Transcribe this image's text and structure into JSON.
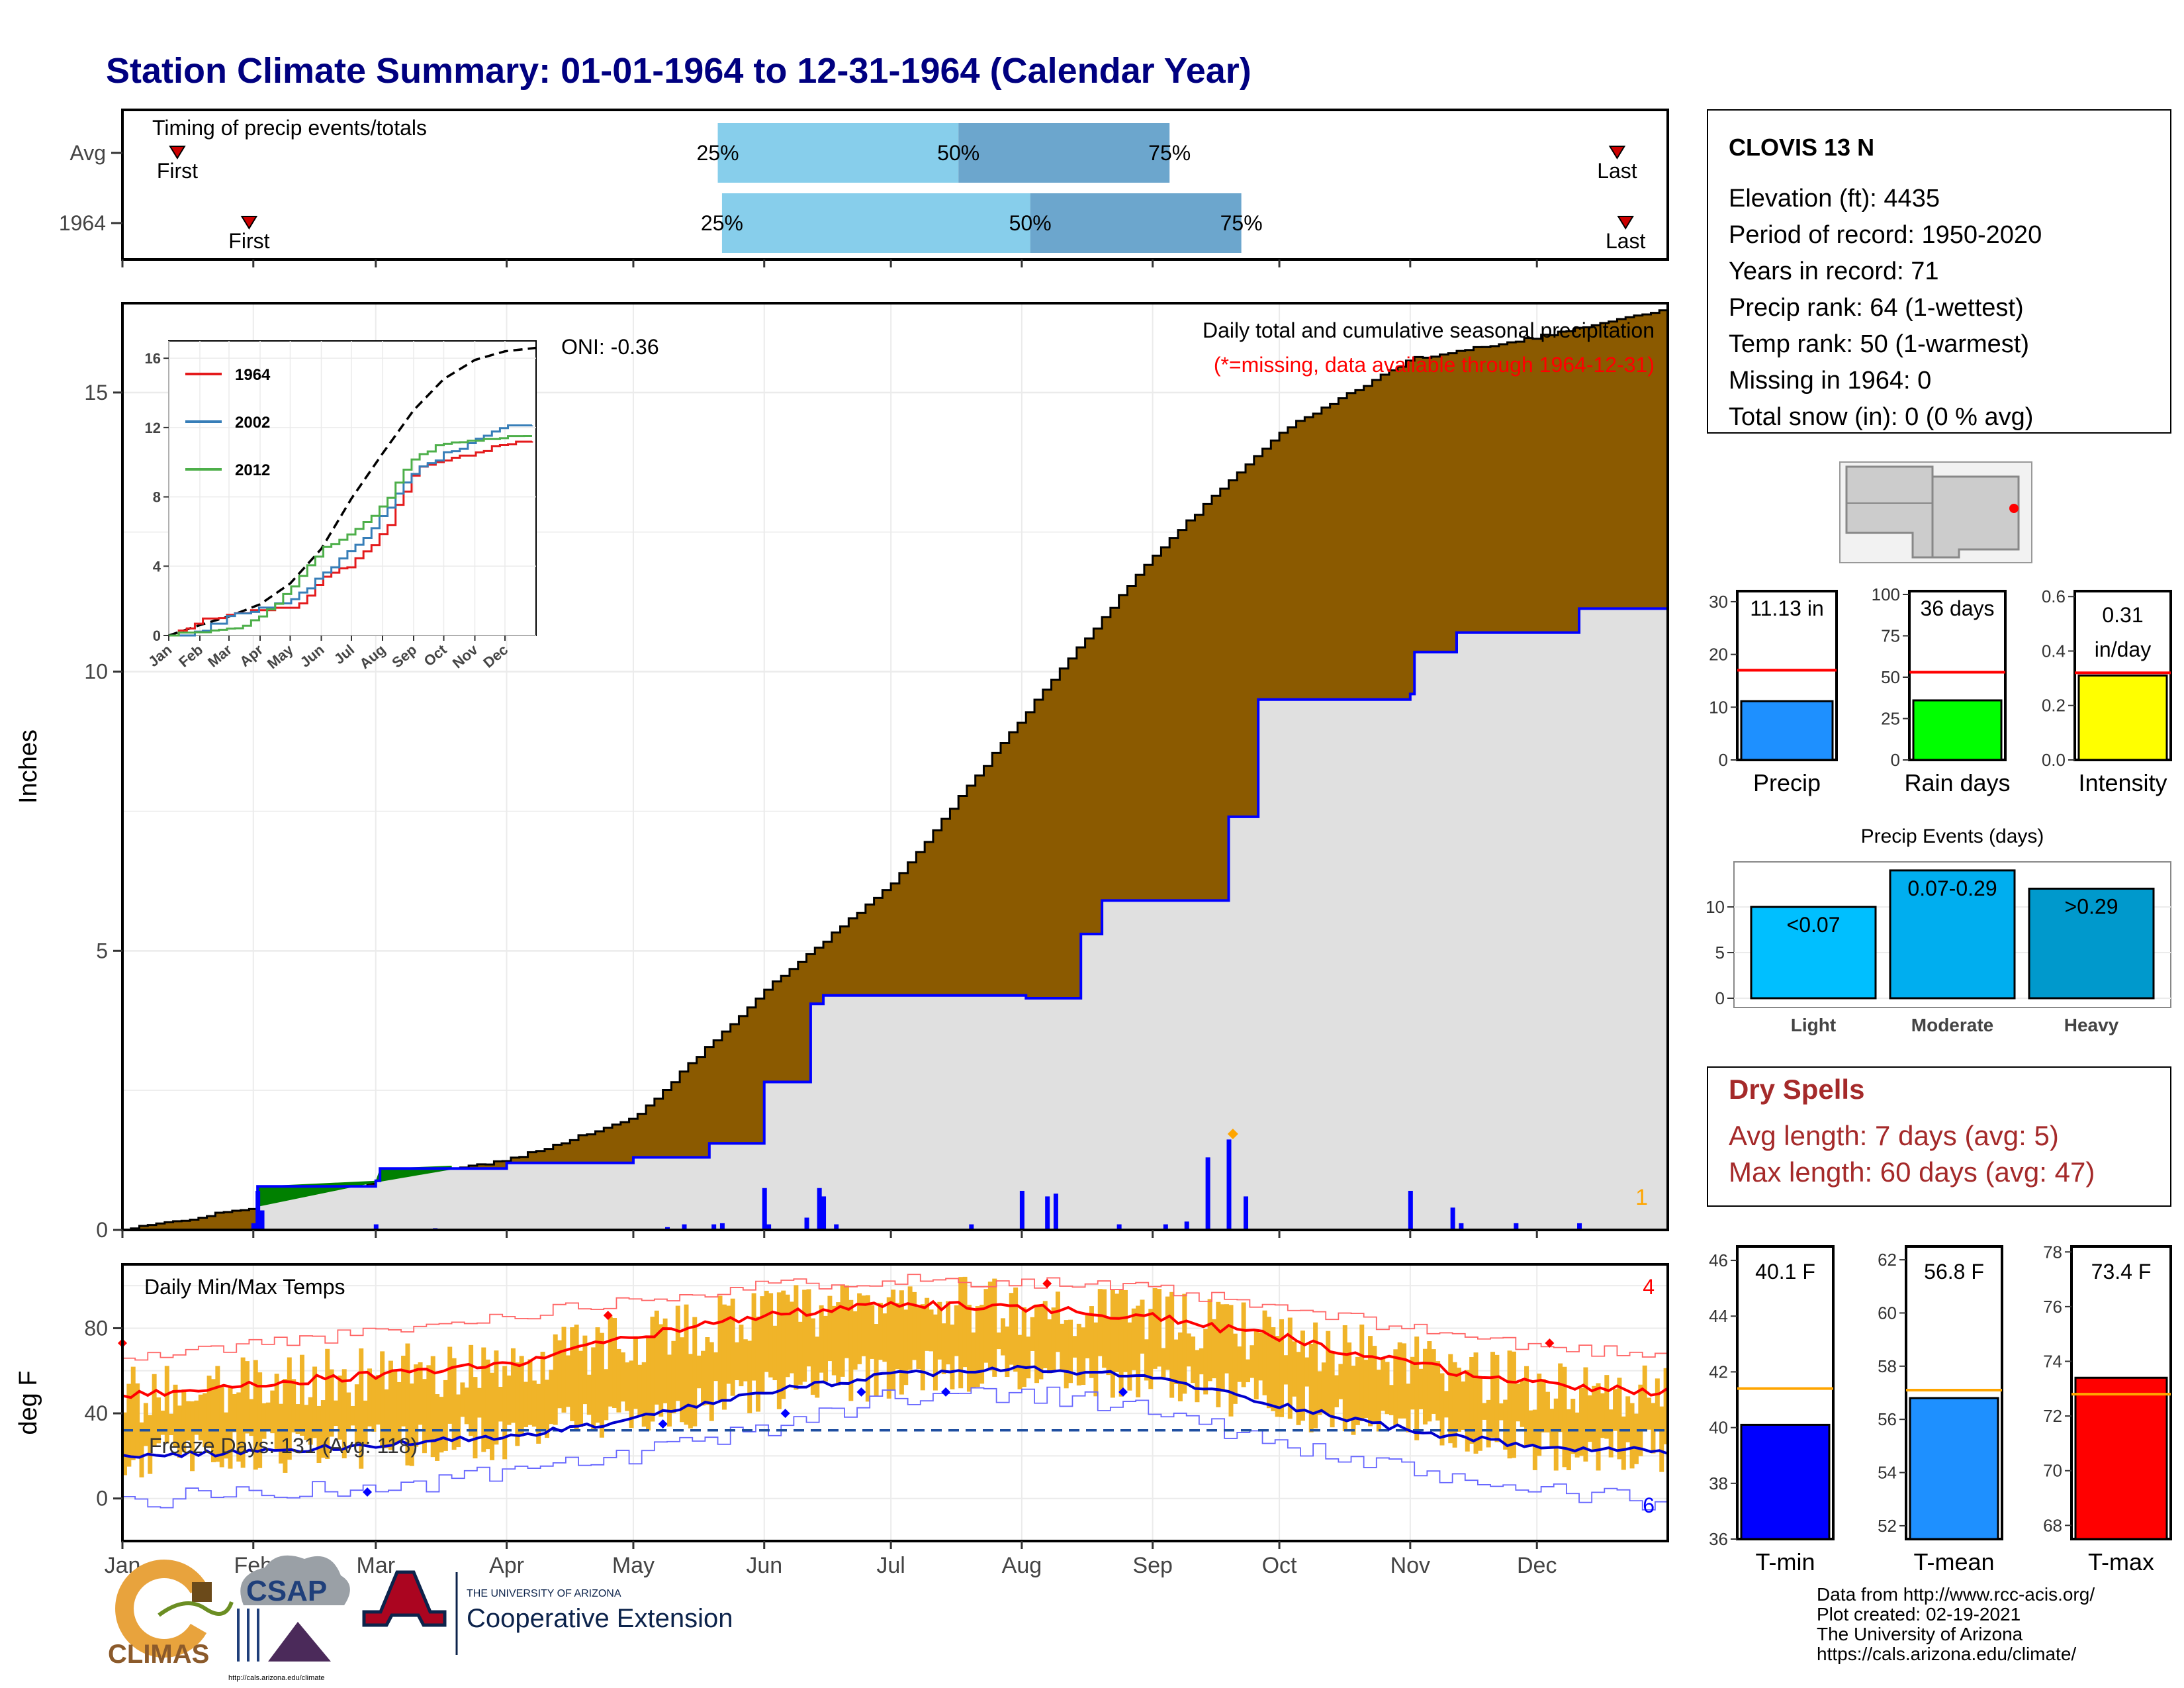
{
  "title": "Station Climate Summary: 01-01-1964 to 12-31-1964 (Calendar Year)",
  "timing": {
    "label": "Timing of precip events/totals",
    "rows": [
      {
        "name": "Avg",
        "first_doy": 13,
        "last_doy": 354,
        "p25_doy": 141,
        "p50_doy": 198,
        "p75_doy": 248,
        "first_label": "First",
        "last_label": "Last",
        "p25_label": "25%",
        "p50_label": "50%",
        "p75_label": "75%"
      },
      {
        "name": "1964",
        "first_doy": 30,
        "last_doy": 356,
        "p25_doy": 142,
        "p50_doy": 215,
        "p75_doy": 265,
        "first_label": "First",
        "last_label": "Last",
        "p25_label": "25%",
        "p50_label": "50%",
        "p75_label": "75%"
      }
    ]
  },
  "precip_panel": {
    "ylabel": "Inches",
    "yticks": [
      0,
      5,
      10,
      15
    ],
    "title_line1": "Daily total and cumulative seasonal precipitation",
    "title_line2": "(*=missing, data available through 1964-12-31)",
    "oni": "ONI: -0.36",
    "corner_count": "1",
    "colors": {
      "avg_fill": "#8B5A00",
      "obs_fill": "#e0e0e0",
      "obs_line": "#0000ff",
      "excess_fill": "#008000"
    }
  },
  "inset": {
    "yticks": [
      0,
      4,
      8,
      12,
      16
    ],
    "months": [
      "Jan",
      "Feb",
      "Mar",
      "Apr",
      "May",
      "Jun",
      "Jul",
      "Aug",
      "Sep",
      "Oct",
      "Nov",
      "Dec"
    ],
    "legend": [
      {
        "name": "1964",
        "color": "#e41a1c"
      },
      {
        "name": "2002",
        "color": "#377eb8"
      },
      {
        "name": "2012",
        "color": "#4daf4a"
      }
    ]
  },
  "temp_panel": {
    "ylabel": "deg F",
    "yticks": [
      0,
      40,
      80
    ],
    "label": "Daily Min/Max Temps",
    "freeze_label": "Freeze Days: 131 (Avg: 118)",
    "count_max": "4",
    "count_min": "6",
    "months": [
      "Jan",
      "Feb",
      "Mar",
      "Apr",
      "May",
      "Jun",
      "Jul",
      "Aug",
      "Sep",
      "Oct",
      "Nov",
      "Dec"
    ]
  },
  "station": {
    "name": "CLOVIS 13 N",
    "lines": [
      "Elevation (ft): 4435",
      "Period of record: 1950-2020",
      "Years in record: 71",
      "Precip rank: 64 (1-wettest)",
      "Temp rank: 50 (1-warmest)",
      "Missing in 1964: 0",
      "Total snow (in): 0 (0 % avg)"
    ]
  },
  "mini_bars": [
    {
      "label": "Precip",
      "value_text": "11.13 in",
      "value": 11.13,
      "avg": 17,
      "ymax": 32,
      "yticks": [
        0,
        10,
        20,
        30
      ],
      "color": "#1E90FF"
    },
    {
      "label": "Rain days",
      "value_text": "36 days",
      "value": 36,
      "avg": 53,
      "ymax": 102,
      "yticks": [
        0,
        25,
        50,
        75,
        100
      ],
      "color": "#00FF00"
    },
    {
      "label": "Intensity",
      "value_text_1": "0.31",
      "value_text_2": "in/day",
      "value": 0.31,
      "avg": 0.32,
      "ymax": 0.62,
      "yticks": [
        0.0,
        0.2,
        0.4,
        0.6
      ],
      "color": "#FFFF00"
    }
  ],
  "events": {
    "title": "Precip Events (days)",
    "yticks": [
      0,
      5,
      10
    ],
    "ymax": 14.5,
    "bars": [
      {
        "category": "Light",
        "label": "<0.07",
        "value": 10,
        "color": "#00BFFF"
      },
      {
        "category": "Moderate",
        "label": "0.07-0.29",
        "value": 14,
        "color": "#00AEEF"
      },
      {
        "category": "Heavy",
        "label": ">0.29",
        "value": 12,
        "color": "#0099CC"
      }
    ]
  },
  "dry_spells": {
    "title": "Dry Spells",
    "line1": "Avg length: 7 days (avg: 5)",
    "line2": "Max length: 60 days (avg: 47)",
    "color": "#A52A2A"
  },
  "temp_bars": [
    {
      "label": "T-min",
      "value_text": "40.1 F",
      "value": 40.1,
      "avg": 41.4,
      "ymin": 36,
      "ymax": 46.5,
      "yticks": [
        36,
        38,
        40,
        42,
        44,
        46
      ],
      "color": "#0000FF"
    },
    {
      "label": "T-mean",
      "value_text": "56.8 F",
      "value": 56.8,
      "avg": 57.1,
      "ymin": 51.5,
      "ymax": 62.5,
      "yticks": [
        52,
        54,
        56,
        58,
        60,
        62
      ],
      "color": "#1E90FF"
    },
    {
      "label": "T-max",
      "value_text": "73.4 F",
      "value": 73.4,
      "avg": 72.8,
      "ymin": 67.5,
      "ymax": 78.2,
      "yticks": [
        68,
        70,
        72,
        74,
        76,
        78
      ],
      "color": "#FF0000"
    }
  ],
  "footer": {
    "lines": [
      "Data from http://www.rcc-acis.org/",
      "Plot created: 02-19-2021",
      "The University of Arizona",
      "https://cals.arizona.edu/climate/"
    ],
    "climas_text": "CLIMAS",
    "csap_text": "CSAP",
    "csap_url": "http://cals.arizona.edu/climate",
    "ua_small": "THE UNIVERSITY OF ARIZONA",
    "ua_big": "Cooperative Extension"
  },
  "chart_data": [
    {
      "type": "area",
      "title": "Daily total and cumulative seasonal precipitation",
      "ylabel": "Inches",
      "ylim": [
        0,
        16.6
      ],
      "x": [
        "Jan",
        "Feb",
        "Mar",
        "Apr",
        "May",
        "Jun",
        "Jul",
        "Aug",
        "Sep",
        "Oct",
        "Nov",
        "Dec",
        "Dec 31"
      ],
      "series": [
        {
          "values": [
            0.0,
            0.4,
            0.85,
            1.25,
            2.0,
            4.3,
            6.2,
            9.2,
            12.1,
            14.3,
            15.6,
            16.0,
            16.5
          ]
        },
        {
          "values": [
            0.0,
            0.05,
            1.0,
            1.2,
            1.35,
            1.55,
            4.2,
            4.2,
            5.9,
            7.4,
            9.6,
            10.3,
            11.13
          ]
        }
      ],
      "daily_bars": [
        {
          "date": "Feb 2",
          "value": 0.7
        },
        {
          "date": "Mar 1",
          "value": 0.1
        },
        {
          "date": "Jun 1",
          "value": 0.75
        },
        {
          "date": "Jun 12",
          "value": 0.75
        },
        {
          "date": "Aug 6",
          "value": 0.7
        },
        {
          "date": "Aug 13",
          "value": 0.6
        },
        {
          "date": "Sep 12",
          "value": 1.3
        },
        {
          "date": "Sep 19",
          "value": 1.65
        },
        {
          "date": "Nov 1",
          "value": 0.7
        },
        {
          "date": "Dec 1",
          "value": 0.15
        }
      ]
    },
    {
      "type": "line",
      "title": "",
      "ylim": [
        0,
        17
      ],
      "x": [
        "Jan",
        "Feb",
        "Mar",
        "Apr",
        "May",
        "Jun",
        "Jul",
        "Aug",
        "Sep",
        "Oct",
        "Nov",
        "Dec"
      ],
      "series": [
        {
          "values": [
            0.0,
            0.6,
            1.1,
            1.8,
            3.0,
            5.0,
            7.9,
            10.5,
            13.0,
            14.8,
            15.9,
            16.4
          ]
        },
        {
          "name": "1964",
          "values": [
            0.0,
            0.8,
            1.1,
            1.4,
            1.5,
            3.2,
            4.2,
            5.9,
            9.6,
            10.0,
            10.6,
            11.1
          ]
        },
        {
          "name": "2002",
          "values": [
            0.0,
            0.2,
            1.1,
            1.5,
            2.0,
            3.5,
            5.0,
            7.0,
            9.5,
            10.5,
            11.2,
            12.0
          ]
        },
        {
          "name": "2012",
          "values": [
            0.0,
            0.1,
            0.3,
            1.0,
            2.8,
            5.0,
            6.0,
            7.5,
            10.5,
            11.0,
            11.2,
            11.4
          ]
        }
      ]
    },
    {
      "type": "line",
      "title": "Daily Min/Max Temps",
      "ylabel": "deg F",
      "ylim": [
        -20,
        110
      ],
      "x": [
        "Jan",
        "Feb",
        "Mar",
        "Apr",
        "May",
        "Jun",
        "Jul",
        "Aug",
        "Sep",
        "Oct",
        "Nov",
        "Dec",
        "Dec 31"
      ],
      "series": [
        {
          "values": [
            48,
            54,
            58,
            63,
            76,
            86,
            91,
            90,
            85,
            76,
            63,
            54,
            50
          ]
        },
        {
          "values": [
            20,
            22,
            25,
            29,
            37,
            50,
            58,
            61,
            57,
            44,
            32,
            24,
            22
          ]
        },
        {
          "values": [
            65,
            73,
            78,
            86,
            94,
            100,
            103,
            102,
            98,
            89,
            80,
            71,
            68
          ]
        },
        {
          "values": [
            -2,
            4,
            4,
            12,
            20,
            33,
            48,
            50,
            42,
            25,
            12,
            4,
            -3
          ]
        }
      ],
      "freeze_threshold": 32
    },
    {
      "type": "bar",
      "title": "",
      "categories": [
        "Precip",
        "Rain days",
        "Intensity"
      ],
      "series": [
        {
          "values": [
            11.13,
            36,
            0.31
          ]
        },
        {
          "values": [
            17,
            53,
            0.32
          ]
        }
      ]
    },
    {
      "type": "bar",
      "title": "Precip Events (days)",
      "categories": [
        "Light",
        "Moderate",
        "Heavy"
      ],
      "values": [
        10,
        14,
        12
      ]
    },
    {
      "type": "bar",
      "title": "",
      "categories": [
        "T-min",
        "T-mean",
        "T-max"
      ],
      "series": [
        {
          "values": [
            40.1,
            56.8,
            73.4
          ]
        },
        {
          "values": [
            41.4,
            57.1,
            72.8
          ]
        }
      ]
    }
  ]
}
